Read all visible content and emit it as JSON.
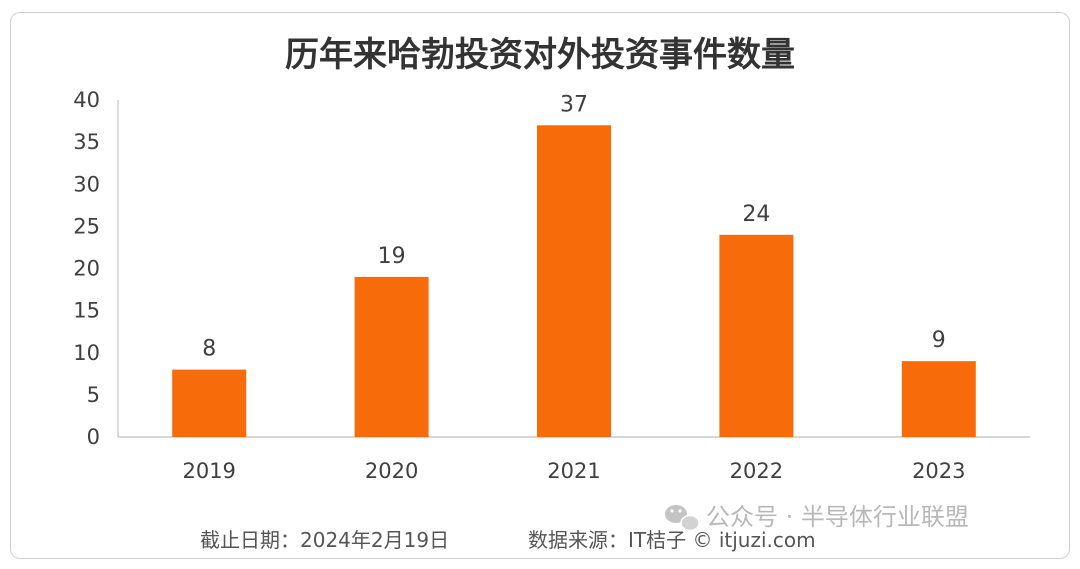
{
  "chart_data": {
    "type": "bar",
    "title": "历年来哈勃投资对外投资事件数量",
    "categories": [
      "2019",
      "2020",
      "2021",
      "2022",
      "2023"
    ],
    "values": [
      8,
      19,
      37,
      24,
      9
    ],
    "ylim": [
      0,
      40
    ],
    "yticks": [
      0,
      5,
      10,
      15,
      20,
      25,
      30,
      35,
      40
    ],
    "grid": false,
    "legend": "none",
    "bar_color": "#F76B0A"
  },
  "footer": {
    "cutoff": "截止日期：2024年2月19日",
    "source": "数据来源：IT桔子 © itjuzi.com"
  },
  "watermark": {
    "text": "公众号 · 半导体行业联盟",
    "icon": "wechat-icon"
  }
}
